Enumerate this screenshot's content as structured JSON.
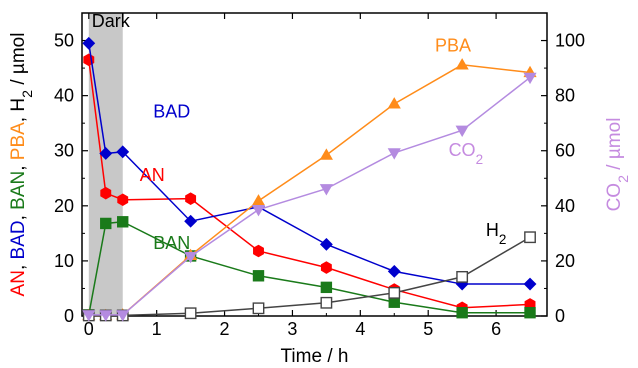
{
  "chart_data": {
    "type": "line",
    "xlabel": "Time / h",
    "ylabel_left_parts": [
      {
        "text": "AN",
        "color": "#ff0000"
      },
      {
        "text": ", ",
        "color": "#000000"
      },
      {
        "text": "BAD",
        "color": "#0000cc"
      },
      {
        "text": ", ",
        "color": "#000000"
      },
      {
        "text": "BAN",
        "color": "#1a7a1a"
      },
      {
        "text": ", ",
        "color": "#000000"
      },
      {
        "text": "PBA",
        "color": "#ff8c1a"
      },
      {
        "text": ", ",
        "color": "#000000"
      },
      {
        "text": "H",
        "color": "#000000"
      },
      {
        "text": "2",
        "color": "#000000",
        "sub": true
      },
      {
        "text": " / µmol",
        "color": "#000000"
      }
    ],
    "ylabel_right_parts": [
      {
        "text": "CO",
        "color": "#c58be0"
      },
      {
        "text": "2",
        "color": "#c58be0",
        "sub": true
      },
      {
        "text": " / µmol",
        "color": "#c58be0"
      }
    ],
    "xlim": [
      -0.1,
      6.75
    ],
    "ylim_left": [
      0,
      55
    ],
    "ylim_right": [
      0,
      110
    ],
    "x_ticks": [
      0,
      1,
      2,
      3,
      4,
      5,
      6
    ],
    "y_left_ticks": [
      0,
      10,
      20,
      30,
      40,
      50
    ],
    "y_right_ticks": [
      0,
      20,
      40,
      60,
      80,
      100
    ],
    "shaded_region": {
      "x_start": 0,
      "x_end": 0.5,
      "label": "Dark",
      "color": "#c8c8c8"
    },
    "series": [
      {
        "name": "AN",
        "axis": "left",
        "color": "#ff0000",
        "marker": "hexagon",
        "filled": true,
        "x": [
          0,
          0.25,
          0.5,
          1.5,
          2.5,
          3.5,
          4.5,
          5.5,
          6.5
        ],
        "y": [
          46.5,
          22.3,
          21.1,
          21.3,
          11.8,
          8.8,
          4.8,
          1.5,
          2.1
        ]
      },
      {
        "name": "BAD",
        "axis": "left",
        "color": "#0000cc",
        "marker": "diamond",
        "filled": true,
        "x": [
          0,
          0.25,
          0.5,
          1.5,
          2.5,
          3.5,
          4.5,
          5.5,
          6.5
        ],
        "y": [
          49.5,
          29.5,
          29.8,
          17.2,
          19.8,
          13.0,
          8.1,
          5.8,
          5.8
        ]
      },
      {
        "name": "BAN",
        "axis": "left",
        "color": "#1a7a1a",
        "marker": "square",
        "filled": true,
        "x": [
          0,
          0.25,
          0.5,
          1.5,
          2.5,
          3.5,
          4.5,
          5.5,
          6.5
        ],
        "y": [
          0.2,
          16.8,
          17.1,
          10.9,
          7.3,
          5.2,
          2.5,
          0.6,
          0.6
        ]
      },
      {
        "name": "PBA",
        "axis": "left",
        "color": "#ff8c1a",
        "marker": "triangle-up",
        "filled": true,
        "x": [
          0,
          0.25,
          0.5,
          1.5,
          2.5,
          3.5,
          4.5,
          5.5,
          6.5
        ],
        "y": [
          0.1,
          0.1,
          0.2,
          11.0,
          20.9,
          29.2,
          38.5,
          45.6,
          44.2
        ]
      },
      {
        "name": "H2",
        "axis": "left",
        "color": "#444444",
        "marker": "square",
        "filled": false,
        "x": [
          0,
          0.25,
          0.5,
          1.5,
          2.5,
          3.5,
          4.5,
          5.5,
          6.5
        ],
        "y": [
          0.1,
          0.1,
          0.1,
          0.5,
          1.4,
          2.4,
          4.2,
          7.1,
          14.3
        ]
      },
      {
        "name": "CO2",
        "axis": "right",
        "color": "#b48be0",
        "marker": "triangle-down",
        "filled": true,
        "x": [
          0,
          0.25,
          0.5,
          1.5,
          2.5,
          3.5,
          4.5,
          5.5,
          6.5
        ],
        "y": [
          0.4,
          0.4,
          0.4,
          21.6,
          38.6,
          46.2,
          59.2,
          67.4,
          86.6
        ]
      }
    ],
    "annotations": [
      {
        "parts": [
          {
            "text": "BAD"
          }
        ],
        "color": "#0000cc",
        "x": 0.95,
        "y": 36.0
      },
      {
        "parts": [
          {
            "text": "AN"
          }
        ],
        "color": "#ff0000",
        "x": 0.75,
        "y": 24.5
      },
      {
        "parts": [
          {
            "text": "BAN"
          }
        ],
        "color": "#1a7a1a",
        "x": 0.95,
        "y": 12.2
      },
      {
        "parts": [
          {
            "text": "PBA"
          }
        ],
        "color": "#ff8c1a",
        "x": 5.1,
        "y": 48.0
      },
      {
        "parts": [
          {
            "text": "CO"
          },
          {
            "text": "2",
            "sub": true
          }
        ],
        "color": "#c58be0",
        "x": 5.3,
        "y": 29.0
      },
      {
        "parts": [
          {
            "text": "H"
          },
          {
            "text": "2",
            "sub": true
          }
        ],
        "color": "#000000",
        "x": 5.85,
        "y": 14.5
      }
    ]
  }
}
